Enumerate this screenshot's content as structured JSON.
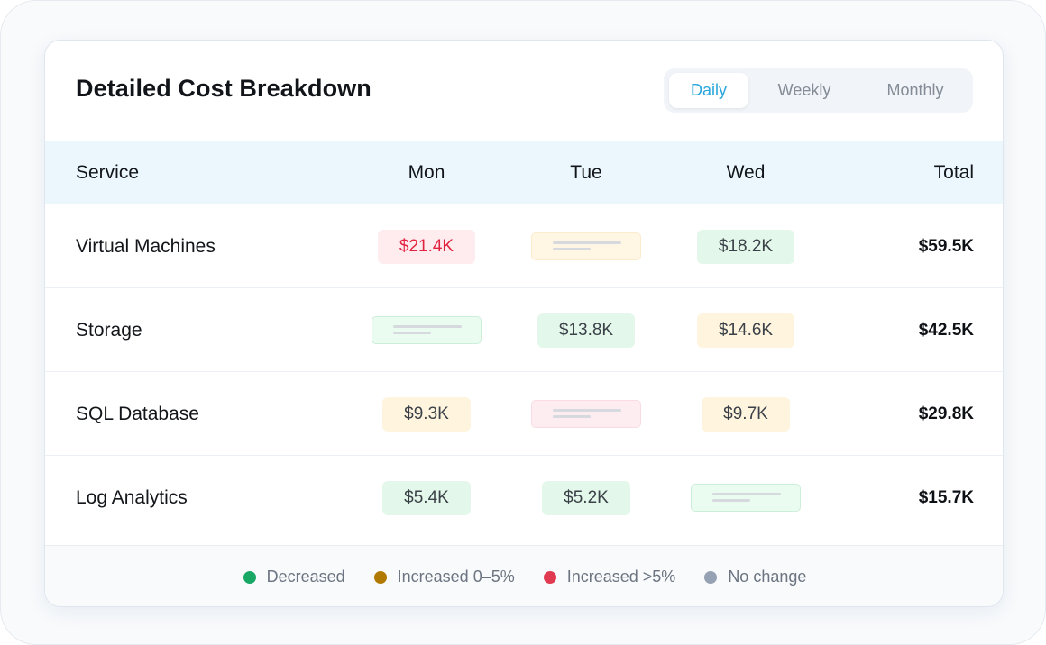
{
  "title": "Detailed Cost Breakdown",
  "period_toggle": {
    "options": [
      "Daily",
      "Weekly",
      "Monthly"
    ],
    "selected": "Daily"
  },
  "table": {
    "headers": {
      "service": "Service",
      "mon": "Mon",
      "tue": "Tue",
      "wed": "Wed",
      "total": "Total"
    },
    "rows": [
      {
        "service": "Virtual Machines",
        "mon": {
          "value": "$21.4K",
          "status": "increased_gt5"
        },
        "tue": {
          "value": null,
          "status": "increased_0_5"
        },
        "wed": {
          "value": "$18.2K",
          "status": "decreased"
        },
        "total": "$59.5K"
      },
      {
        "service": "Storage",
        "mon": {
          "value": null,
          "status": "decreased"
        },
        "tue": {
          "value": "$13.8K",
          "status": "decreased"
        },
        "wed": {
          "value": "$14.6K",
          "status": "increased_0_5"
        },
        "total": "$42.5K"
      },
      {
        "service": "SQL Database",
        "mon": {
          "value": "$9.3K",
          "status": "increased_0_5"
        },
        "tue": {
          "value": null,
          "status": "increased_gt5"
        },
        "wed": {
          "value": "$9.7K",
          "status": "increased_0_5"
        },
        "total": "$29.8K"
      },
      {
        "service": "Log Analytics",
        "mon": {
          "value": "$5.4K",
          "status": "decreased"
        },
        "tue": {
          "value": "$5.2K",
          "status": "decreased"
        },
        "wed": {
          "value": null,
          "status": "decreased"
        },
        "total": "$15.7K"
      }
    ]
  },
  "legend": [
    {
      "label": "Decreased",
      "color": "#18a765"
    },
    {
      "label": "Increased 0–5%",
      "color": "#b07a00"
    },
    {
      "label": "Increased >5%",
      "color": "#e03a50"
    },
    {
      "label": "No change",
      "color": "#96a1b3"
    }
  ],
  "colors": {
    "accent": "#2aa6dc",
    "header_bg": "#ebf7fd",
    "decreased_bg": "#e3f8ea",
    "increased_0_5_bg": "#fff5df",
    "increased_gt5_bg": "#feecef",
    "increased_gt5_text": "#e2233f"
  }
}
